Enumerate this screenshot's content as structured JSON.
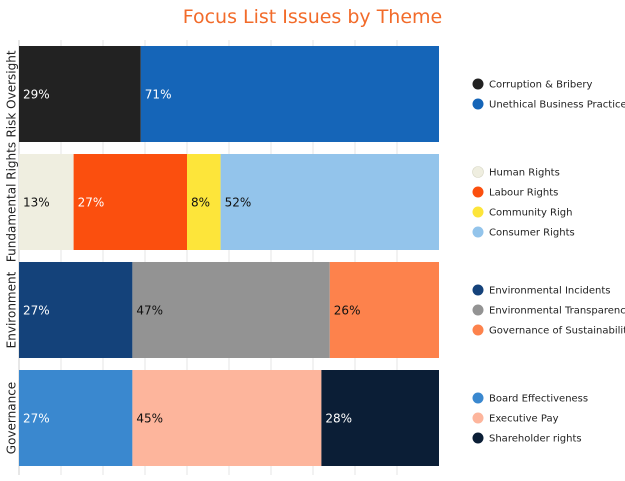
{
  "chart_data": {
    "type": "bar",
    "orientation": "horizontal",
    "stacked": "percent",
    "title": "Focus List Issues by Theme",
    "xlabel": "",
    "ylabel": "",
    "xlim": [
      0,
      100
    ],
    "grid": true,
    "legend_placement": "right",
    "categories": [
      "Risk Oversight",
      "Fundamental Rights",
      "Environment",
      "Governance"
    ],
    "groups": [
      {
        "category": "Risk Oversight",
        "segments": [
          {
            "name": "Corruption & Bribery",
            "value": 29,
            "label": "29%",
            "color": "#222222",
            "label_color": "#ffffff"
          },
          {
            "name": "Unethical Business Practices",
            "value": 71,
            "label": "71%",
            "color": "#1565b8",
            "label_color": "#ffffff"
          }
        ]
      },
      {
        "category": "Fundamental Rights",
        "segments": [
          {
            "name": "Human Rights",
            "value": 13,
            "label": "13%",
            "color": "#efeee0",
            "label_color": "#111111"
          },
          {
            "name": "Labour Rights",
            "value": 27,
            "label": "27%",
            "color": "#fb4f0e",
            "label_color": "#ffffff"
          },
          {
            "name": "Community Righ",
            "value": 8,
            "label": "8%",
            "color": "#fde53a",
            "label_color": "#111111"
          },
          {
            "name": "Consumer Rights",
            "value": 52,
            "label": "52%",
            "color": "#93c4eb",
            "label_color": "#111111"
          }
        ]
      },
      {
        "category": "Environment",
        "segments": [
          {
            "name": "Environmental Incidents",
            "value": 27,
            "label": "27%",
            "color": "#14427a",
            "label_color": "#ffffff"
          },
          {
            "name": "Environmental Transparency",
            "value": 47,
            "label": "47%",
            "color": "#939393",
            "label_color": "#111111"
          },
          {
            "name": "Governance of Sustainability",
            "value": 26,
            "label": "26%",
            "color": "#fd824c",
            "label_color": "#111111"
          }
        ]
      },
      {
        "category": "Governance",
        "segments": [
          {
            "name": "Board Effectiveness",
            "value": 27,
            "label": "27%",
            "color": "#3a88cf",
            "label_color": "#ffffff"
          },
          {
            "name": "Executive Pay",
            "value": 45,
            "label": "45%",
            "color": "#fdb59c",
            "label_color": "#111111"
          },
          {
            "name": "Shareholder rights",
            "value": 28,
            "label": "28%",
            "color": "#0b1e36",
            "label_color": "#ffffff"
          }
        ]
      }
    ]
  }
}
